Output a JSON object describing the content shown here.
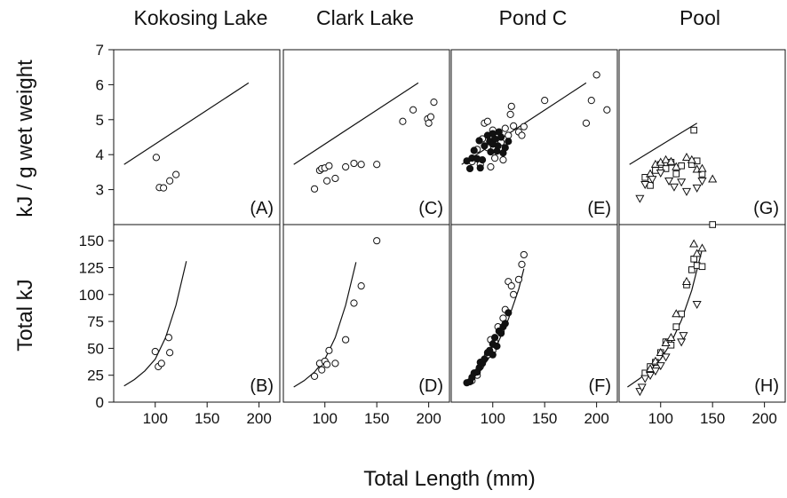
{
  "figure": {
    "xlabel": "Total Length (mm)",
    "ylabel_top": "kJ / g wet weight",
    "ylabel_bottom": "Total kJ",
    "colors": {
      "axis": "#111111",
      "marker_open": "#ffffff",
      "marker_filled": "#111111"
    }
  },
  "chart_data": [
    {
      "type": "scatter",
      "title": "Kokosing Lake",
      "panel_label": "(A)",
      "xlim": [
        60,
        220
      ],
      "ylim": [
        2,
        7
      ],
      "xticks": [
        100,
        150,
        200
      ],
      "yticks": [
        3,
        4,
        5,
        6,
        7
      ],
      "line": {
        "x": [
          70,
          190
        ],
        "y": [
          3.72,
          6.05
        ]
      },
      "series": [
        {
          "marker": "circle-open",
          "points": [
            [
              101,
              3.92
            ],
            [
              104,
              3.06
            ],
            [
              108,
              3.05
            ],
            [
              114,
              3.25
            ],
            [
              120,
              3.43
            ]
          ]
        }
      ]
    },
    {
      "type": "scatter",
      "title": "Clark Lake",
      "panel_label": "(C)",
      "xlim": [
        60,
        220
      ],
      "ylim": [
        2,
        7
      ],
      "xticks": [
        100,
        150,
        200
      ],
      "yticks": [
        3,
        4,
        5,
        6,
        7
      ],
      "line": {
        "x": [
          70,
          190
        ],
        "y": [
          3.72,
          6.05
        ]
      },
      "series": [
        {
          "marker": "circle-open",
          "points": [
            [
              90,
              3.02
            ],
            [
              95,
              3.55
            ],
            [
              97,
              3.6
            ],
            [
              100,
              3.62
            ],
            [
              102,
              3.25
            ],
            [
              104,
              3.68
            ],
            [
              110,
              3.32
            ],
            [
              120,
              3.65
            ],
            [
              128,
              3.75
            ],
            [
              135,
              3.72
            ],
            [
              150,
              3.72
            ],
            [
              175,
              4.95
            ],
            [
              185,
              5.28
            ],
            [
              199,
              5.02
            ],
            [
              200,
              4.9
            ],
            [
              202,
              5.08
            ],
            [
              205,
              5.5
            ]
          ]
        }
      ]
    },
    {
      "type": "scatter",
      "title": "Pond C",
      "panel_label": "(E)",
      "xlim": [
        60,
        220
      ],
      "ylim": [
        2,
        7
      ],
      "xticks": [
        100,
        150,
        200
      ],
      "yticks": [
        3,
        4,
        5,
        6,
        7
      ],
      "line": {
        "x": [
          70,
          190
        ],
        "y": [
          3.72,
          6.05
        ]
      },
      "series": [
        {
          "marker": "circle-open",
          "points": [
            [
              80,
              3.8
            ],
            [
              85,
              4.15
            ],
            [
              88,
              3.72
            ],
            [
              90,
              4.45
            ],
            [
              92,
              4.9
            ],
            [
              95,
              4.95
            ],
            [
              95,
              4.2
            ],
            [
              98,
              3.65
            ],
            [
              100,
              4.7
            ],
            [
              102,
              3.9
            ],
            [
              105,
              4.5
            ],
            [
              108,
              4.35
            ],
            [
              110,
              3.85
            ],
            [
              112,
              4.75
            ],
            [
              115,
              4.55
            ],
            [
              117,
              5.15
            ],
            [
              118,
              5.38
            ],
            [
              120,
              4.82
            ],
            [
              125,
              4.65
            ],
            [
              128,
              4.55
            ],
            [
              130,
              4.8
            ],
            [
              150,
              5.55
            ],
            [
              190,
              4.9
            ],
            [
              195,
              5.55
            ],
            [
              200,
              6.28
            ],
            [
              210,
              5.28
            ]
          ]
        },
        {
          "marker": "circle-filled",
          "points": [
            [
              75,
              3.82
            ],
            [
              78,
              3.6
            ],
            [
              80,
              3.9
            ],
            [
              82,
              4.12
            ],
            [
              85,
              3.88
            ],
            [
              87,
              4.4
            ],
            [
              88,
              3.62
            ],
            [
              90,
              3.85
            ],
            [
              92,
              4.25
            ],
            [
              95,
              4.55
            ],
            [
              97,
              4.38
            ],
            [
              98,
              4.08
            ],
            [
              100,
              4.6
            ],
            [
              100,
              4.3
            ],
            [
              102,
              4.45
            ],
            [
              104,
              4.1
            ],
            [
              105,
              4.25
            ],
            [
              106,
              4.65
            ],
            [
              108,
              4.5
            ],
            [
              110,
              4.05
            ],
            [
              112,
              4.2
            ],
            [
              115,
              4.38
            ]
          ]
        }
      ]
    },
    {
      "type": "scatter",
      "title": "Pool",
      "panel_label": "(G)",
      "xlim": [
        60,
        220
      ],
      "ylim": [
        2,
        7
      ],
      "xticks": [
        100,
        150,
        200
      ],
      "yticks": [
        3,
        4,
        5,
        6,
        7
      ],
      "line": {
        "x": [
          70,
          135
        ],
        "y": [
          3.72,
          4.9
        ]
      },
      "series": [
        {
          "marker": "square-open",
          "points": [
            [
              85,
              3.35
            ],
            [
              90,
              3.12
            ],
            [
              95,
              3.55
            ],
            [
              100,
              3.72
            ],
            [
              105,
              3.6
            ],
            [
              110,
              3.78
            ],
            [
              115,
              3.45
            ],
            [
              120,
              3.68
            ],
            [
              130,
              3.72
            ],
            [
              132,
              4.7
            ],
            [
              135,
              3.82
            ],
            [
              140,
              3.45
            ]
          ]
        },
        {
          "marker": "triangle-up-open",
          "points": [
            [
              90,
              3.45
            ],
            [
              95,
              3.72
            ],
            [
              100,
              3.78
            ],
            [
              105,
              3.85
            ],
            [
              110,
              3.8
            ],
            [
              115,
              3.65
            ],
            [
              125,
              3.92
            ],
            [
              130,
              3.85
            ],
            [
              135,
              3.58
            ],
            [
              140,
              3.6
            ],
            [
              150,
              3.3
            ]
          ]
        },
        {
          "marker": "triangle-down-open",
          "points": [
            [
              80,
              2.75
            ],
            [
              85,
              3.15
            ],
            [
              92,
              3.3
            ],
            [
              100,
              3.48
            ],
            [
              108,
              3.25
            ],
            [
              113,
              3.08
            ],
            [
              120,
              3.22
            ],
            [
              125,
              2.95
            ],
            [
              135,
              3.05
            ],
            [
              140,
              3.25
            ]
          ]
        }
      ]
    },
    {
      "type": "scatter",
      "title": "",
      "panel_label": "(B)",
      "xlim": [
        60,
        220
      ],
      "ylim": [
        0,
        165
      ],
      "xticks": [
        100,
        150,
        200
      ],
      "yticks": [
        0,
        25,
        50,
        75,
        100,
        125,
        150
      ],
      "line": {
        "x": [
          70,
          80,
          90,
          100,
          110,
          120,
          130
        ],
        "y": [
          15,
          21,
          29,
          40,
          60,
          90,
          131
        ]
      },
      "series": [
        {
          "marker": "circle-open",
          "points": [
            [
              100,
              47
            ],
            [
              103,
              33
            ],
            [
              106,
              36
            ],
            [
              113,
              60
            ],
            [
              114,
              46
            ]
          ]
        }
      ]
    },
    {
      "type": "scatter",
      "title": "",
      "panel_label": "(D)",
      "xlim": [
        60,
        220
      ],
      "ylim": [
        0,
        165
      ],
      "xticks": [
        100,
        150,
        200
      ],
      "yticks": [
        0,
        25,
        50,
        75,
        100,
        125,
        150
      ],
      "line": {
        "x": [
          70,
          80,
          90,
          100,
          110,
          120,
          130
        ],
        "y": [
          14,
          20,
          28,
          40,
          60,
          90,
          130
        ]
      },
      "series": [
        {
          "marker": "circle-open",
          "points": [
            [
              90,
              24
            ],
            [
              95,
              36
            ],
            [
              97,
              30
            ],
            [
              100,
              38
            ],
            [
              102,
              35
            ],
            [
              104,
              48
            ],
            [
              110,
              36
            ],
            [
              120,
              58
            ],
            [
              128,
              92
            ],
            [
              135,
              108
            ],
            [
              150,
              150
            ]
          ]
        }
      ]
    },
    {
      "type": "scatter",
      "title": "",
      "panel_label": "(F)",
      "xlim": [
        60,
        220
      ],
      "ylim": [
        0,
        165
      ],
      "xticks": [
        100,
        150,
        200
      ],
      "yticks": [
        0,
        25,
        50,
        75,
        100,
        125,
        150
      ],
      "line": {
        "x": [
          75,
          85,
          95,
          105,
          115,
          125,
          130
        ],
        "y": [
          18,
          27,
          39,
          55,
          77,
          105,
          124
        ]
      },
      "series": [
        {
          "marker": "circle-open",
          "points": [
            [
              80,
              20
            ],
            [
              85,
              25
            ],
            [
              88,
              33
            ],
            [
              90,
              37
            ],
            [
              95,
              44
            ],
            [
              98,
              58
            ],
            [
              100,
              48
            ],
            [
              102,
              56
            ],
            [
              105,
              70
            ],
            [
              108,
              66
            ],
            [
              110,
              78
            ],
            [
              112,
              86
            ],
            [
              115,
              112
            ],
            [
              118,
              108
            ],
            [
              120,
              100
            ],
            [
              125,
              114
            ],
            [
              128,
              128
            ],
            [
              130,
              137
            ]
          ]
        },
        {
          "marker": "circle-filled",
          "points": [
            [
              75,
              18
            ],
            [
              78,
              19
            ],
            [
              80,
              23
            ],
            [
              82,
              27
            ],
            [
              85,
              28
            ],
            [
              87,
              32
            ],
            [
              88,
              37
            ],
            [
              90,
              36
            ],
            [
              92,
              40
            ],
            [
              95,
              46
            ],
            [
              97,
              48
            ],
            [
              100,
              54
            ],
            [
              100,
              44
            ],
            [
              102,
              60
            ],
            [
              104,
              52
            ],
            [
              106,
              66
            ],
            [
              108,
              64
            ],
            [
              110,
              70
            ],
            [
              112,
              73
            ],
            [
              115,
              83
            ]
          ]
        }
      ]
    },
    {
      "type": "scatter",
      "title": "",
      "panel_label": "(H)",
      "xlim": [
        60,
        220
      ],
      "ylim": [
        0,
        165
      ],
      "xticks": [
        100,
        150,
        200
      ],
      "yticks": [
        0,
        25,
        50,
        75,
        100,
        125,
        150
      ],
      "line": {
        "x": [
          68,
          80,
          90,
          100,
          110,
          120,
          130,
          140
        ],
        "y": [
          14,
          22,
          30,
          40,
          55,
          76,
          104,
          142
        ]
      },
      "series": [
        {
          "marker": "square-open",
          "points": [
            [
              85,
              27
            ],
            [
              90,
              33
            ],
            [
              95,
              37
            ],
            [
              100,
              46
            ],
            [
              105,
              56
            ],
            [
              110,
              53
            ],
            [
              115,
              70
            ],
            [
              120,
              82
            ],
            [
              125,
              109
            ],
            [
              130,
              123
            ],
            [
              132,
              133
            ],
            [
              135,
              127
            ],
            [
              140,
              126
            ],
            [
              150,
              165
            ]
          ]
        },
        {
          "marker": "triangle-up-open",
          "points": [
            [
              90,
              31
            ],
            [
              95,
              38
            ],
            [
              100,
              46
            ],
            [
              105,
              55
            ],
            [
              110,
              60
            ],
            [
              115,
              82
            ],
            [
              125,
              112
            ],
            [
              132,
              147
            ],
            [
              135,
              138
            ],
            [
              140,
              143
            ]
          ]
        },
        {
          "marker": "triangle-down-open",
          "points": [
            [
              80,
              10
            ],
            [
              82,
              14
            ],
            [
              85,
              22
            ],
            [
              90,
              25
            ],
            [
              95,
              29
            ],
            [
              100,
              34
            ],
            [
              105,
              42
            ],
            [
              120,
              56
            ],
            [
              122,
              62
            ],
            [
              135,
              91
            ]
          ]
        }
      ]
    }
  ]
}
